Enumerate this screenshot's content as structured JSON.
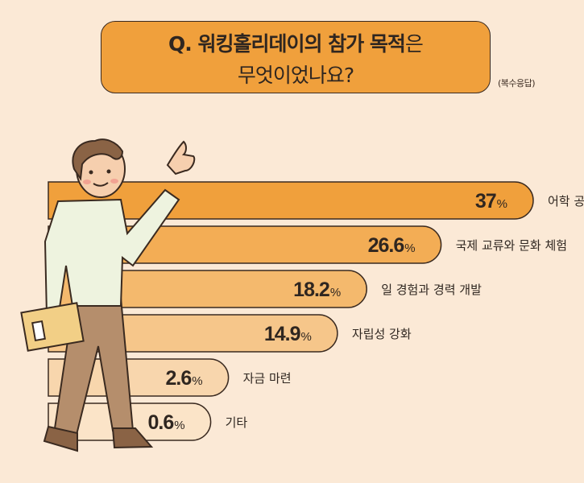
{
  "title": {
    "line1_bold": "Q. 워킹홀리데이의 참가 목적",
    "line1_suffix": "은",
    "line2": "무엇이었나요?"
  },
  "note": "(복수응답)",
  "chart_data": {
    "type": "bar",
    "orientation": "horizontal",
    "categories": [
      "어학 공부 및 언어 습득",
      "국제 교류와 문화 체험",
      "일 경험과 경력 개발",
      "자립성 강화",
      "자금 마련",
      "기타"
    ],
    "values": [
      37,
      26.6,
      18.2,
      14.9,
      2.6,
      0.6
    ],
    "value_labels": [
      "37",
      "26.6",
      "18.2",
      "14.9",
      "2.6",
      "0.6"
    ],
    "unit": "%",
    "colors": [
      "#f0a03c",
      "#f3ad55",
      "#f4b96d",
      "#f6c68a",
      "#f8d6ad",
      "#fbe4c8"
    ]
  }
}
